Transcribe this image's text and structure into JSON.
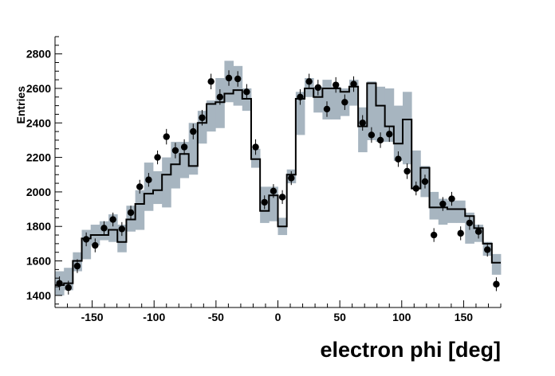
{
  "chart_data": {
    "type": "histogram",
    "title": "",
    "xlabel": "electron phi [deg]",
    "ylabel": "Entries",
    "xlim": [
      -180,
      180
    ],
    "ylim": [
      1330,
      2900
    ],
    "x_ticks": [
      -150,
      -100,
      -50,
      0,
      50,
      100,
      150
    ],
    "y_ticks": [
      1400,
      1600,
      1800,
      2000,
      2200,
      2400,
      2600,
      2800
    ],
    "bin_width": 7.2,
    "bin_centers": [
      -176.4,
      -169.2,
      -162.0,
      -154.8,
      -147.6,
      -140.4,
      -133.2,
      -126.0,
      -118.8,
      -111.6,
      -104.4,
      -97.2,
      -90.0,
      -82.8,
      -75.6,
      -68.4,
      -61.2,
      -54.0,
      -46.8,
      -39.6,
      -32.4,
      -25.2,
      -18.0,
      -10.8,
      -3.6,
      3.6,
      10.8,
      18.0,
      25.2,
      32.4,
      39.6,
      46.8,
      54.0,
      61.2,
      68.4,
      75.6,
      82.8,
      90.0,
      97.2,
      104.4,
      111.6,
      118.8,
      126.0,
      133.2,
      140.4,
      147.6,
      154.8,
      162.0,
      169.2,
      176.4
    ],
    "series": [
      {
        "name": "",
        "style": "points with error bars",
        "color": "#000000",
        "values": [
          1470,
          1445,
          1570,
          1725,
          1690,
          1790,
          1840,
          1785,
          1880,
          2030,
          2070,
          2200,
          2320,
          2240,
          2260,
          2350,
          2430,
          2640,
          2550,
          2660,
          2655,
          2580,
          2260,
          1940,
          2005,
          1970,
          2080,
          2550,
          2640,
          2605,
          2480,
          2620,
          2520,
          2625,
          2400,
          2330,
          2300,
          2335,
          2190,
          2120,
          2020,
          2060,
          1750,
          1930,
          1960,
          1760,
          1820,
          1770,
          1665,
          1465
        ],
        "errors": [
          40,
          40,
          40,
          40,
          40,
          40,
          40,
          40,
          40,
          40,
          40,
          40,
          45,
          45,
          45,
          45,
          45,
          45,
          45,
          45,
          45,
          45,
          45,
          40,
          40,
          40,
          40,
          45,
          45,
          45,
          45,
          45,
          45,
          45,
          45,
          45,
          45,
          45,
          45,
          45,
          40,
          40,
          40,
          40,
          40,
          40,
          40,
          40,
          40,
          40
        ]
      },
      {
        "name": "",
        "style": "step line",
        "color": "#000000",
        "values": [
          1460,
          1470,
          1600,
          1730,
          1750,
          1750,
          1780,
          1710,
          1840,
          1930,
          1990,
          2010,
          2100,
          2160,
          2220,
          2150,
          2400,
          2510,
          2520,
          2570,
          2590,
          2540,
          2190,
          1890,
          1980,
          1800,
          2100,
          2540,
          2600,
          2550,
          2600,
          2600,
          2580,
          2610,
          2380,
          2630,
          2500,
          2380,
          2280,
          2420,
          2020,
          2140,
          1910,
          1910,
          1900,
          1900,
          1860,
          1790,
          1700,
          1590
        ]
      },
      {
        "name": "",
        "style": "shaded band",
        "color": "#a7b5c0",
        "low": [
          1400,
          1430,
          1540,
          1610,
          1690,
          1720,
          1710,
          1650,
          1770,
          1780,
          1890,
          1930,
          1910,
          2020,
          2080,
          2100,
          2280,
          2350,
          2370,
          2520,
          2500,
          2470,
          2140,
          1820,
          1830,
          1750,
          2050,
          2330,
          2550,
          2460,
          2420,
          2420,
          2440,
          2500,
          2230,
          2300,
          2290,
          2290,
          2180,
          2160,
          2020,
          1970,
          1840,
          1810,
          1820,
          1820,
          1700,
          1710,
          1630,
          1520
        ],
        "high": [
          1540,
          1560,
          1650,
          1780,
          1810,
          1830,
          1870,
          1810,
          1920,
          2010,
          2170,
          2120,
          2200,
          2290,
          2290,
          2400,
          2470,
          2530,
          2660,
          2760,
          2730,
          2600,
          2250,
          2030,
          2030,
          1850,
          2130,
          2580,
          2660,
          2610,
          2650,
          2610,
          2600,
          2650,
          2490,
          2640,
          2610,
          2600,
          2500,
          2580,
          2240,
          2150,
          2000,
          1960,
          1950,
          1950,
          1880,
          1810,
          1710,
          1640
        ]
      }
    ]
  }
}
